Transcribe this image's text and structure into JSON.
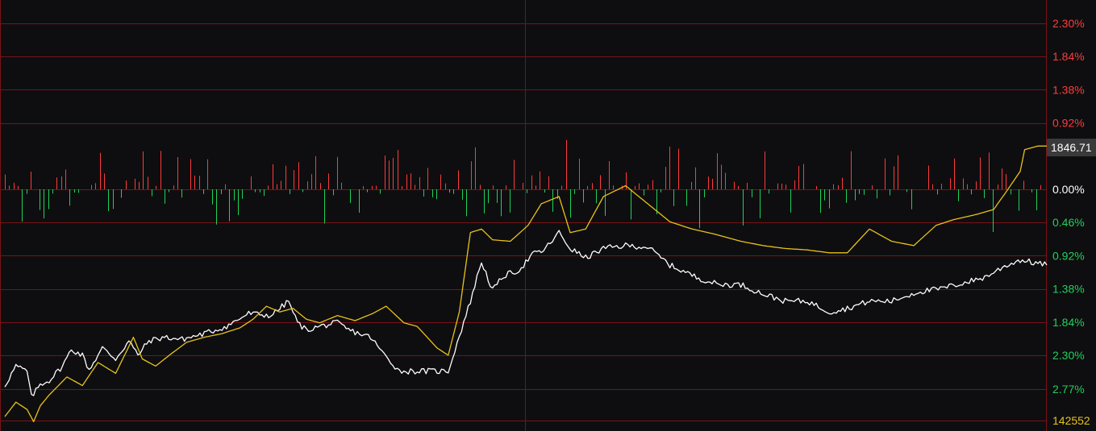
{
  "colors": {
    "background": "#0e0e10",
    "grid": "#7a1216",
    "up": "#ff3b3b",
    "down": "#1fd15a",
    "white_line": "#ffffff",
    "yellow_line": "#e8c21a",
    "price_box": "#3a3a3a"
  },
  "chart_data": {
    "type": "line",
    "y_unit": "%",
    "ylim": [
      -3.0,
      2.55
    ],
    "grid": true,
    "axis_ticks": [
      {
        "label": "2.30%",
        "value": 2.3,
        "color": "up"
      },
      {
        "label": "1.84%",
        "value": 1.84,
        "color": "up"
      },
      {
        "label": "1.38%",
        "value": 1.38,
        "color": "up"
      },
      {
        "label": "0.92%",
        "value": 0.92,
        "color": "up"
      },
      {
        "label": "0.00%",
        "value": 0.0,
        "color": "white_line"
      },
      {
        "label": "0.46%",
        "value": -0.46,
        "color": "down"
      },
      {
        "label": "0.92%",
        "value": -0.92,
        "color": "down"
      },
      {
        "label": "1.38%",
        "value": -1.38,
        "color": "down"
      },
      {
        "label": "1.84%",
        "value": -1.84,
        "color": "down"
      },
      {
        "label": "2.30%",
        "value": -2.3,
        "color": "down"
      },
      {
        "label": "2.77%",
        "value": -2.77,
        "color": "down"
      }
    ],
    "current_price_label": "1846.71",
    "current_price_value": 0.58,
    "volume_label": "142552",
    "x_count": 241,
    "series": [
      {
        "color": "white_line",
        "keypoints": [
          [
            0,
            -2.72
          ],
          [
            5,
            -2.45
          ],
          [
            10,
            -2.52
          ],
          [
            12,
            -2.88
          ],
          [
            16,
            -2.7
          ],
          [
            20,
            -2.65
          ],
          [
            26,
            -2.45
          ],
          [
            30,
            -2.22
          ],
          [
            35,
            -2.3
          ],
          [
            38,
            -2.5
          ],
          [
            44,
            -2.2
          ],
          [
            50,
            -2.35
          ],
          [
            56,
            -2.1
          ],
          [
            60,
            -2.3
          ],
          [
            65,
            -2.1
          ],
          [
            72,
            -2.05
          ],
          [
            80,
            -2.08
          ],
          [
            90,
            -2.0
          ],
          [
            100,
            -1.9
          ],
          [
            110,
            -1.72
          ],
          [
            120,
            -1.75
          ],
          [
            128,
            -1.55
          ],
          [
            132,
            -1.85
          ],
          [
            136,
            -1.95
          ],
          [
            142,
            -1.9
          ],
          [
            150,
            -1.85
          ],
          [
            155,
            -1.95
          ],
          [
            165,
            -2.05
          ],
          [
            170,
            -2.25
          ],
          [
            178,
            -2.52
          ],
          [
            200,
            -2.52
          ],
          [
            210,
            -1.55
          ],
          [
            215,
            -1.0
          ],
          [
            220,
            -1.4
          ],
          [
            225,
            -1.2
          ],
          [
            232,
            -1.12
          ],
          [
            238,
            -0.9
          ],
          [
            243,
            -0.85
          ],
          [
            250,
            -0.6
          ],
          [
            255,
            -0.82
          ],
          [
            262,
            -0.95
          ],
          [
            270,
            -0.82
          ],
          [
            280,
            -0.78
          ],
          [
            290,
            -0.8
          ],
          [
            300,
            -1.05
          ],
          [
            312,
            -1.22
          ],
          [
            322,
            -1.32
          ],
          [
            332,
            -1.32
          ],
          [
            342,
            -1.45
          ],
          [
            352,
            -1.55
          ],
          [
            362,
            -1.55
          ],
          [
            372,
            -1.7
          ],
          [
            380,
            -1.65
          ],
          [
            390,
            -1.55
          ],
          [
            400,
            -1.55
          ],
          [
            412,
            -1.42
          ],
          [
            422,
            -1.38
          ],
          [
            432,
            -1.3
          ],
          [
            442,
            -1.22
          ],
          [
            452,
            -1.05
          ],
          [
            458,
            -0.98
          ],
          [
            470,
            -1.05
          ]
        ]
      },
      {
        "color": "yellow_line",
        "keypoints": [
          [
            0,
            -3.15
          ],
          [
            5,
            -2.95
          ],
          [
            10,
            -3.05
          ],
          [
            13,
            -3.22
          ],
          [
            16,
            -3.0
          ],
          [
            20,
            -2.85
          ],
          [
            28,
            -2.6
          ],
          [
            35,
            -2.72
          ],
          [
            42,
            -2.4
          ],
          [
            50,
            -2.55
          ],
          [
            58,
            -2.05
          ],
          [
            62,
            -2.35
          ],
          [
            68,
            -2.45
          ],
          [
            75,
            -2.28
          ],
          [
            82,
            -2.12
          ],
          [
            90,
            -2.05
          ],
          [
            98,
            -2.0
          ],
          [
            106,
            -1.92
          ],
          [
            112,
            -1.8
          ],
          [
            118,
            -1.62
          ],
          [
            124,
            -1.7
          ],
          [
            130,
            -1.65
          ],
          [
            136,
            -1.8
          ],
          [
            142,
            -1.85
          ],
          [
            150,
            -1.75
          ],
          [
            158,
            -1.82
          ],
          [
            166,
            -1.72
          ],
          [
            172,
            -1.62
          ],
          [
            180,
            -1.85
          ],
          [
            186,
            -1.9
          ],
          [
            195,
            -2.2
          ],
          [
            200,
            -2.3
          ],
          [
            205,
            -1.7
          ],
          [
            210,
            -0.6
          ],
          [
            215,
            -0.55
          ],
          [
            220,
            -0.7
          ],
          [
            228,
            -0.72
          ],
          [
            236,
            -0.5
          ],
          [
            242,
            -0.2
          ],
          [
            250,
            -0.1
          ],
          [
            255,
            -0.6
          ],
          [
            262,
            -0.55
          ],
          [
            270,
            -0.1
          ],
          [
            280,
            0.05
          ],
          [
            290,
            -0.2
          ],
          [
            300,
            -0.45
          ],
          [
            310,
            -0.55
          ],
          [
            320,
            -0.62
          ],
          [
            332,
            -0.72
          ],
          [
            342,
            -0.78
          ],
          [
            352,
            -0.82
          ],
          [
            362,
            -0.84
          ],
          [
            372,
            -0.88
          ],
          [
            380,
            -0.88
          ],
          [
            390,
            -0.55
          ],
          [
            400,
            -0.72
          ],
          [
            410,
            -0.78
          ],
          [
            420,
            -0.5
          ],
          [
            428,
            -0.42
          ],
          [
            438,
            -0.35
          ],
          [
            446,
            -0.28
          ],
          [
            452,
            -0.02
          ],
          [
            458,
            0.25
          ],
          [
            460,
            0.55
          ],
          [
            466,
            0.6
          ],
          [
            470,
            0.6
          ]
        ]
      }
    ],
    "volume_bars_seed": 20240601
  }
}
